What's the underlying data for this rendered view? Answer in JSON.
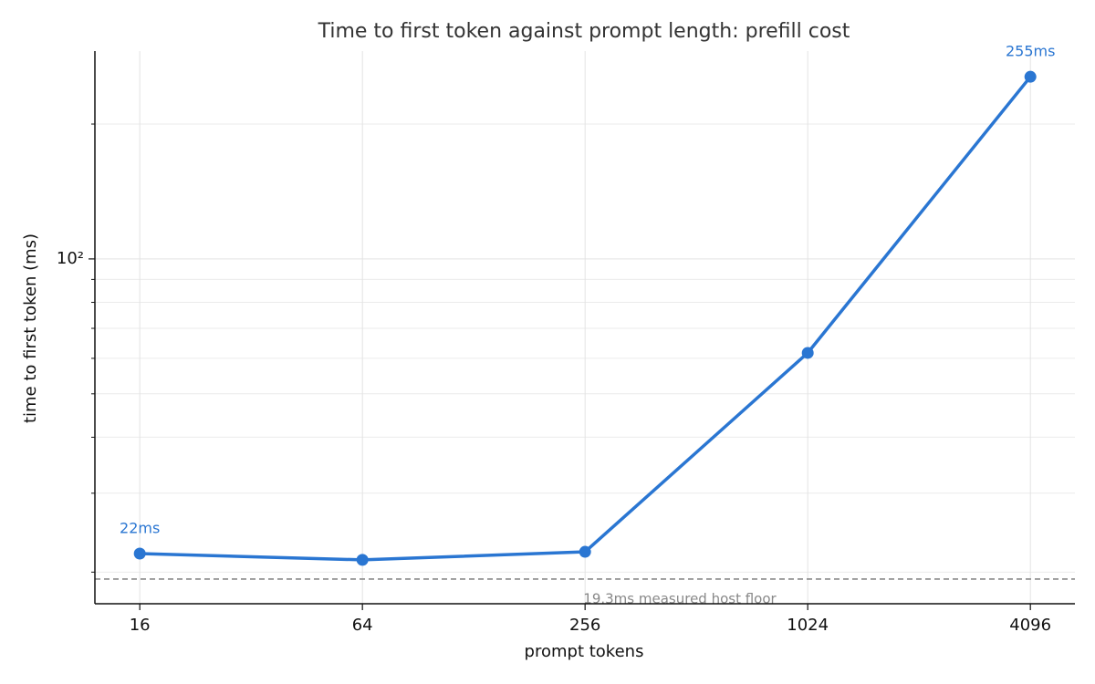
{
  "chart_data": {
    "type": "line",
    "title": "Time to first token against prompt length: prefill cost",
    "xlabel": "prompt tokens",
    "ylabel": "time to first token (ms)",
    "x": [
      16,
      64,
      256,
      1024,
      4096
    ],
    "series": [
      {
        "color": "#2a76d2",
        "values": [
          22,
          21.3,
          22.2,
          61.7,
          255
        ],
        "value_labels": [
          "22ms",
          null,
          null,
          null,
          "255ms"
        ]
      }
    ],
    "xscale": "log",
    "yscale": "log",
    "xlim": [
      12.1,
      5405
    ],
    "ylim": [
      17.0,
      291
    ],
    "xticks": [
      16,
      64,
      256,
      1024,
      4096
    ],
    "yticks": [
      {
        "value": 100,
        "label": "10²"
      }
    ],
    "yminor_ticks": [
      20,
      30,
      40,
      50,
      60,
      70,
      80,
      90,
      200
    ],
    "grid": true,
    "hline": {
      "value": 19.3,
      "label": "19.3ms measured host floor",
      "color": "#888888"
    }
  }
}
